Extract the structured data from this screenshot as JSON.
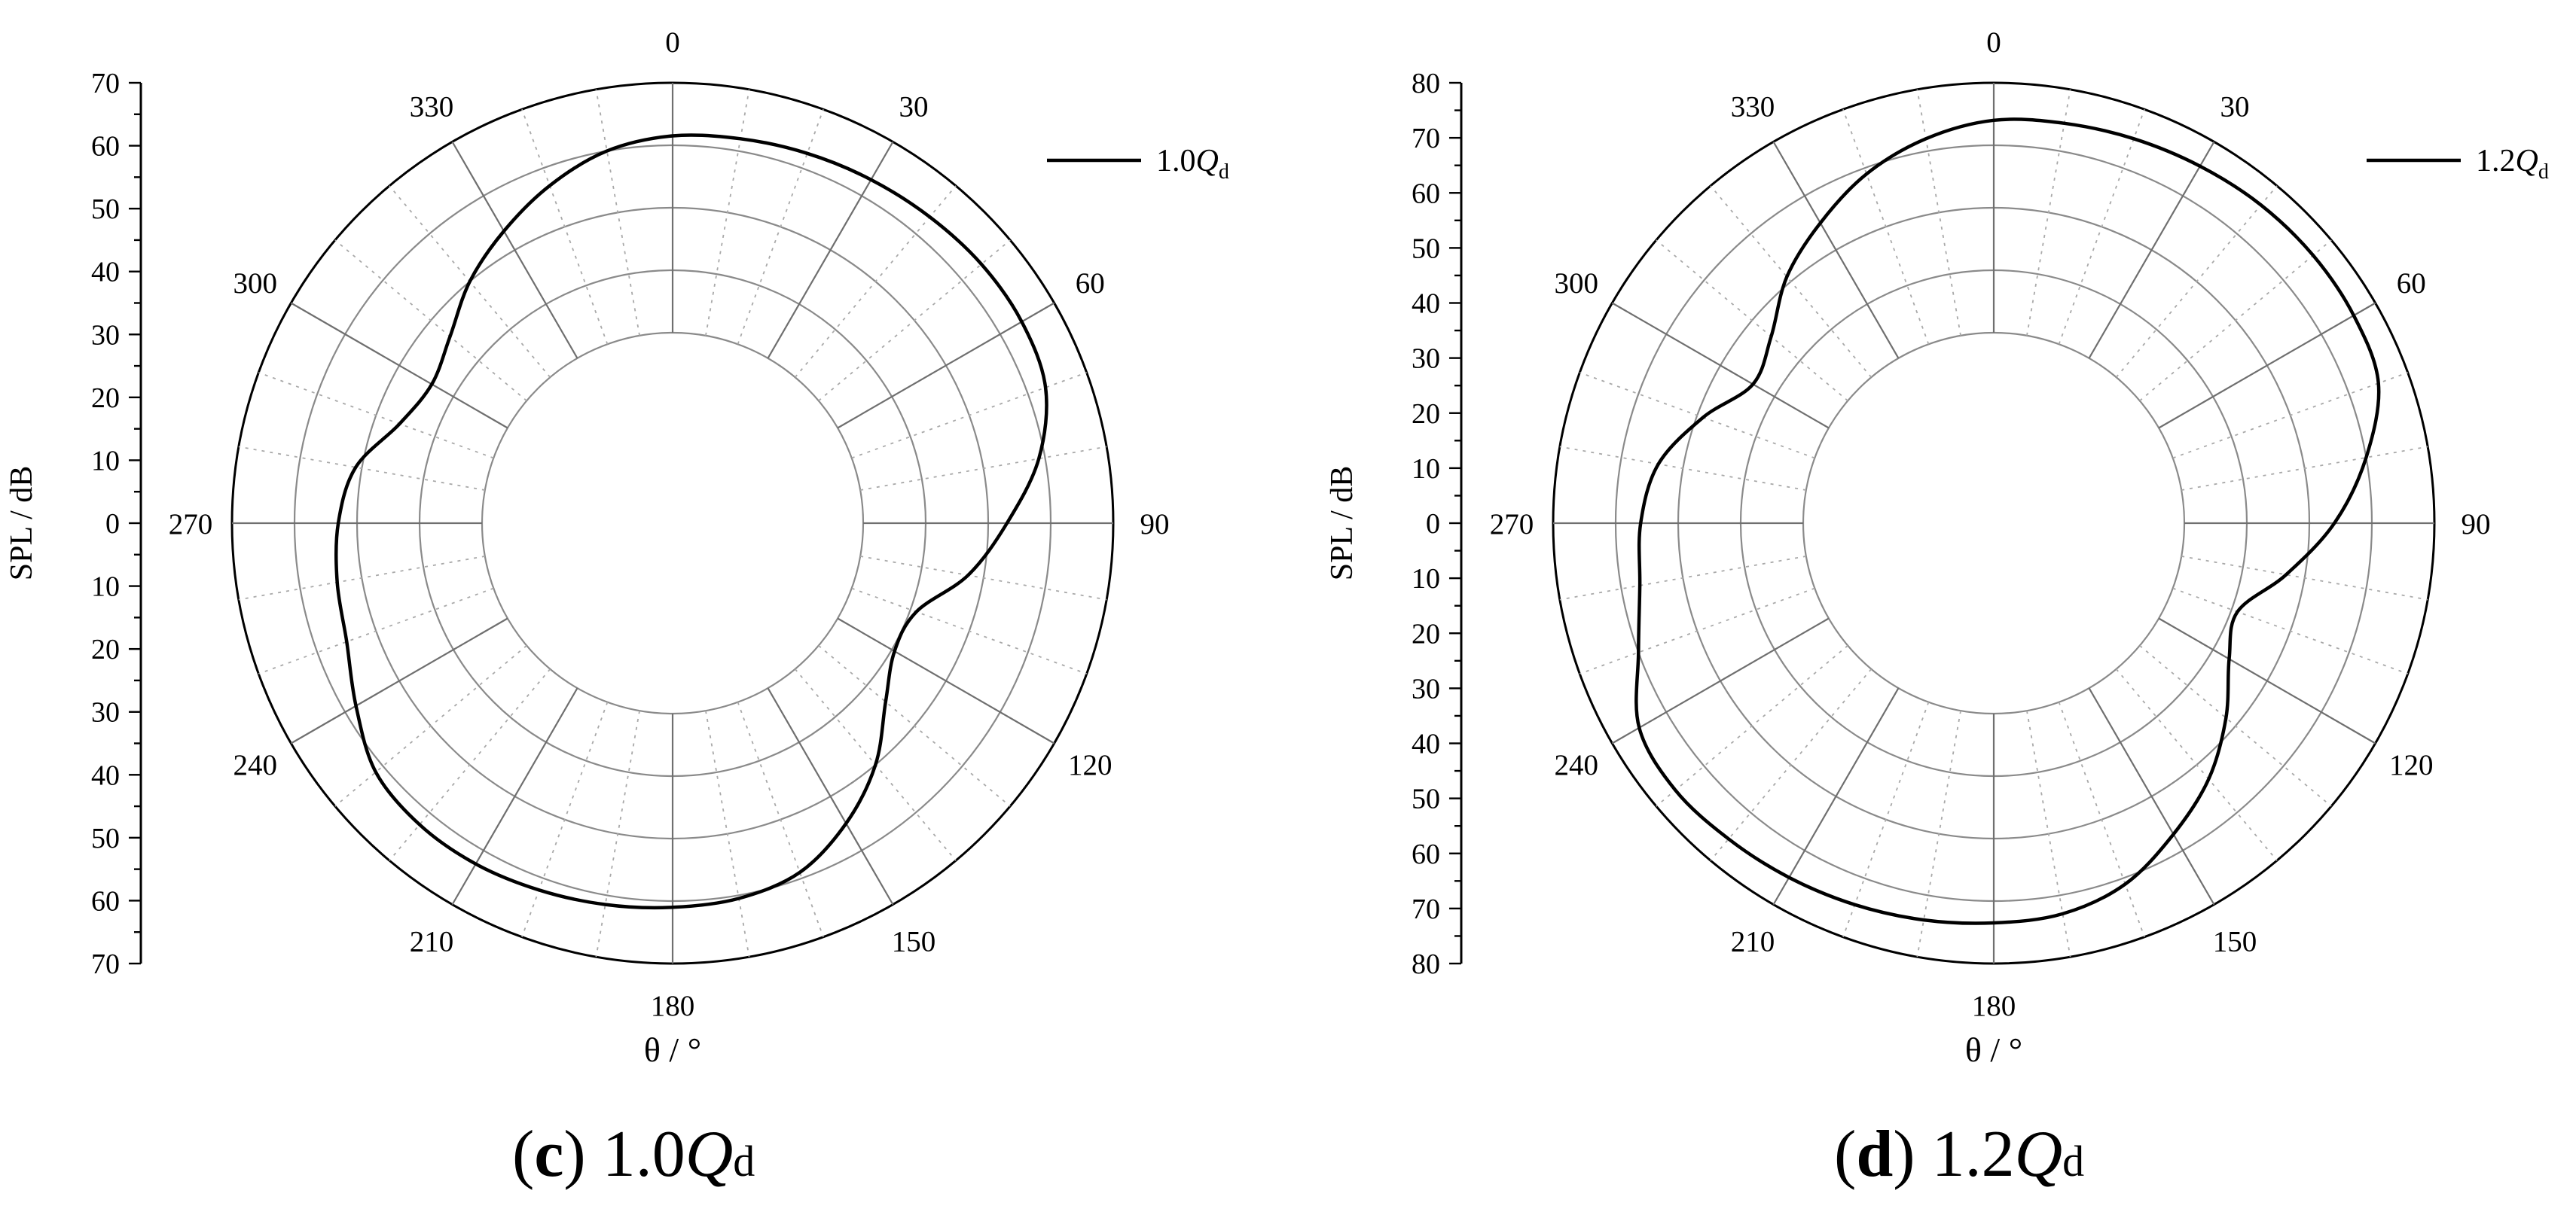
{
  "panels": [
    {
      "caption": {
        "letter": "c",
        "prefix": "1.0",
        "sym": "Q",
        "sub": "d"
      },
      "legend": {
        "prefix": "1.0",
        "sym": "Q",
        "sub": "d"
      }
    },
    {
      "caption": {
        "letter": "d",
        "prefix": "1.2",
        "sym": "Q",
        "sub": "d"
      },
      "legend": {
        "prefix": "1.2",
        "sym": "Q",
        "sub": "d"
      }
    }
  ],
  "chart_data": [
    {
      "type": "line",
      "subtype": "polar",
      "ylabel": "SPL / dB",
      "xlabel": "θ / °",
      "angle_ticks": [
        "0",
        "30",
        "60",
        "90",
        "120",
        "150",
        "180",
        "210",
        "240",
        "270",
        "300",
        "330"
      ],
      "radial_axis": {
        "range": [
          0,
          70
        ],
        "major_step": 10,
        "minor_step": 5,
        "tick_labels": [
          "70",
          "60",
          "50",
          "40",
          "30",
          "20",
          "10",
          "0",
          "10",
          "20",
          "30",
          "40",
          "50",
          "60",
          "70"
        ]
      },
      "rings": [
        30,
        40,
        50,
        60,
        70
      ],
      "grid": true,
      "legend_position": "top-right",
      "series": [
        {
          "name": "1.0Qd",
          "theta": [
            0,
            10,
            20,
            30,
            40,
            50,
            60,
            70,
            80,
            90,
            100,
            110,
            120,
            130,
            140,
            150,
            160,
            170,
            180,
            190,
            200,
            210,
            220,
            230,
            240,
            250,
            260,
            270,
            280,
            290,
            300,
            310,
            320,
            330,
            340,
            350
          ],
          "r": [
            61.5,
            62,
            62.5,
            63,
            63.5,
            64,
            64,
            63,
            59,
            53,
            47.5,
            41,
            40.5,
            44,
            50,
            55,
            59,
            60.5,
            61,
            61.5,
            62,
            62.5,
            62.5,
            61.5,
            58,
            55,
            54,
            53,
            51,
            46,
            44,
            46,
            50,
            53.5,
            57,
            60
          ]
        }
      ]
    },
    {
      "type": "line",
      "subtype": "polar",
      "ylabel": "SPL / dB",
      "xlabel": "θ / °",
      "angle_ticks": [
        "0",
        "30",
        "60",
        "90",
        "120",
        "150",
        "180",
        "210",
        "240",
        "270",
        "300",
        "330"
      ],
      "radial_axis": {
        "range": [
          0,
          80
        ],
        "major_step": 10,
        "minor_step": 5,
        "tick_labels": [
          "80",
          "70",
          "60",
          "50",
          "40",
          "30",
          "20",
          "10",
          "0",
          "10",
          "20",
          "30",
          "40",
          "50",
          "60",
          "70",
          "80"
        ]
      },
      "rings": [
        40,
        50,
        60,
        70,
        80
      ],
      "grid": true,
      "legend_position": "top-right",
      "series": [
        {
          "name": "1.2Qd",
          "theta": [
            0,
            10,
            20,
            30,
            40,
            50,
            60,
            70,
            80,
            90,
            100,
            110,
            120,
            130,
            140,
            150,
            160,
            170,
            180,
            190,
            200,
            210,
            220,
            230,
            240,
            250,
            260,
            270,
            280,
            290,
            300,
            310,
            320,
            330,
            340,
            350
          ],
          "r": [
            74,
            74.5,
            75,
            75.5,
            76,
            76.2,
            76,
            75,
            70,
            64,
            57,
            51,
            53,
            58,
            63,
            67,
            71,
            73,
            73.5,
            74,
            74.5,
            75,
            75.5,
            76,
            75,
            70,
            67,
            66,
            64,
            59,
            54,
            56,
            61,
            65,
            69,
            72
          ]
        }
      ]
    }
  ]
}
